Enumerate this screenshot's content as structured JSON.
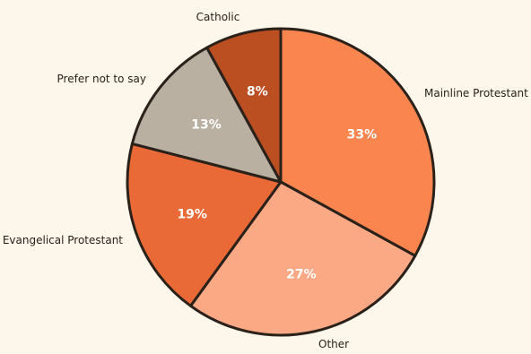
{
  "chart_data": {
    "type": "pie",
    "title": "",
    "start_angle_deg": 0,
    "direction": "clockwise",
    "slices": [
      {
        "label": "Mainline Protestant",
        "value": 33,
        "display": "33%",
        "color": "#fb854f"
      },
      {
        "label": "Other",
        "value": 27,
        "display": "27%",
        "color": "#fba985"
      },
      {
        "label": "Evangelical Protestant",
        "value": 19,
        "display": "19%",
        "color": "#ea6a37"
      },
      {
        "label": "Prefer not to say",
        "value": 13,
        "display": "13%",
        "color": "#b9b0a2"
      },
      {
        "label": "Catholic",
        "value": 8,
        "display": "8%",
        "color": "#bb4f22"
      }
    ],
    "outline_color": "#2b211b",
    "background": "#fdf6ea"
  }
}
